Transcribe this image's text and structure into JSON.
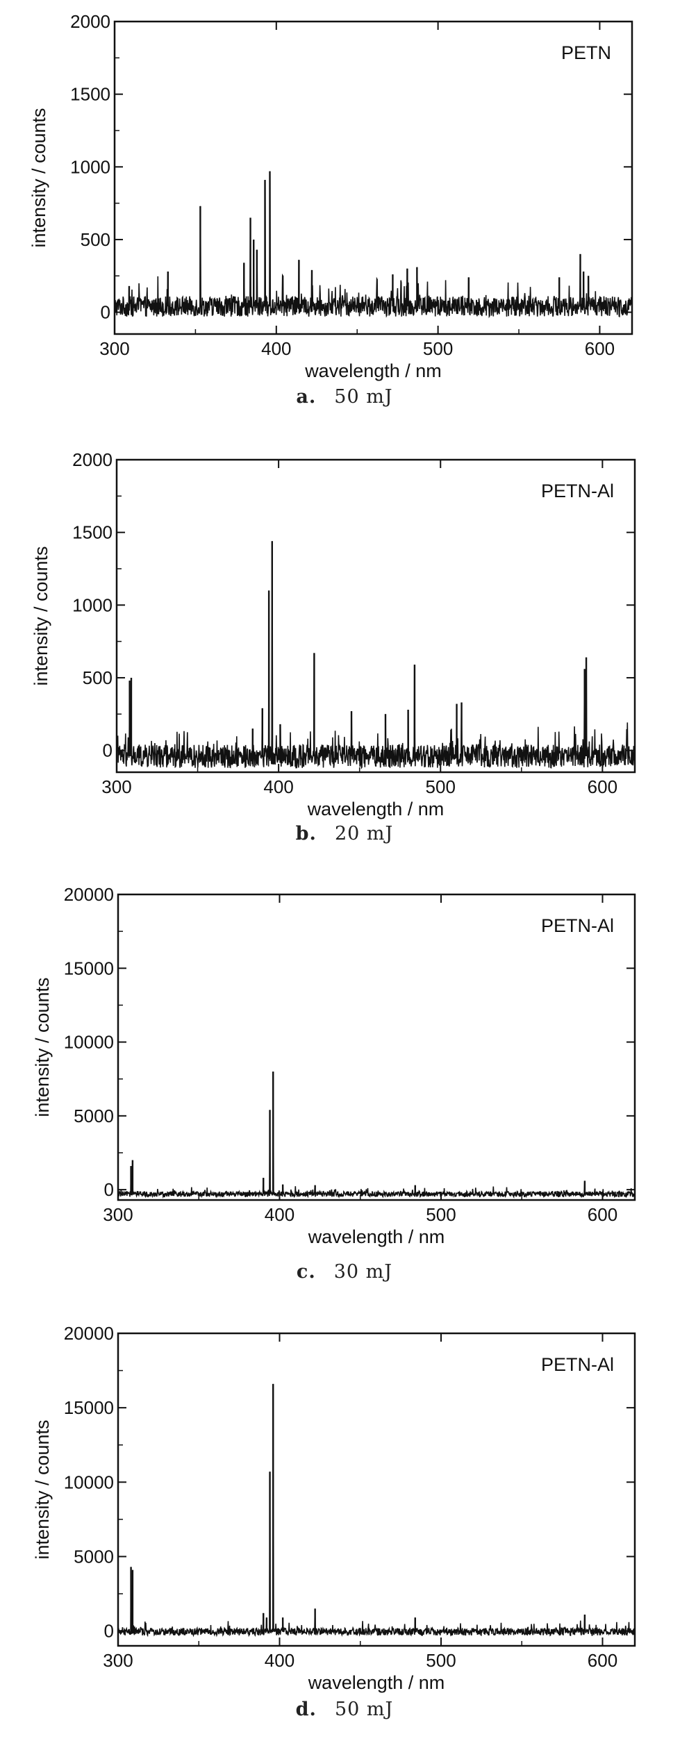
{
  "chart_data": [
    {
      "type": "line",
      "caption_label": "a.",
      "caption_energy": "50 mJ",
      "annotation": "PETN",
      "xlabel": "wavelength / nm",
      "ylabel": "intensity / counts",
      "xlim": [
        300,
        620
      ],
      "ylim": [
        -150,
        2000
      ],
      "xticks": [
        300,
        400,
        500,
        600
      ],
      "yticks": [
        0,
        500,
        1000,
        1500,
        2000
      ],
      "baseline": 40,
      "noise": 70,
      "peaks": [
        {
          "x": 309,
          "y": 180
        },
        {
          "x": 333,
          "y": 280
        },
        {
          "x": 353,
          "y": 730
        },
        {
          "x": 380,
          "y": 340
        },
        {
          "x": 384,
          "y": 650
        },
        {
          "x": 386,
          "y": 500
        },
        {
          "x": 388,
          "y": 430
        },
        {
          "x": 393,
          "y": 910
        },
        {
          "x": 396,
          "y": 970
        },
        {
          "x": 404,
          "y": 250
        },
        {
          "x": 414,
          "y": 360
        },
        {
          "x": 422,
          "y": 290
        },
        {
          "x": 472,
          "y": 260
        },
        {
          "x": 481,
          "y": 300
        },
        {
          "x": 487,
          "y": 310
        },
        {
          "x": 519,
          "y": 240
        },
        {
          "x": 575,
          "y": 240
        },
        {
          "x": 588,
          "y": 400
        },
        {
          "x": 590,
          "y": 280
        },
        {
          "x": 593,
          "y": 250
        }
      ]
    },
    {
      "type": "line",
      "caption_label": "b.",
      "caption_energy": "20 mJ",
      "annotation": "PETN-Al",
      "xlabel": "wavelength / nm",
      "ylabel": "intensity / counts",
      "xlim": [
        300,
        620
      ],
      "ylim": [
        -150,
        2000
      ],
      "xticks": [
        300,
        400,
        500,
        600
      ],
      "yticks": [
        0,
        500,
        1000,
        1500,
        2000
      ],
      "baseline": -40,
      "noise": 80,
      "peaks": [
        {
          "x": 308,
          "y": 480
        },
        {
          "x": 309,
          "y": 500
        },
        {
          "x": 384,
          "y": 150
        },
        {
          "x": 390,
          "y": 290
        },
        {
          "x": 394,
          "y": 1100
        },
        {
          "x": 396,
          "y": 1440
        },
        {
          "x": 401,
          "y": 180
        },
        {
          "x": 422,
          "y": 670
        },
        {
          "x": 445,
          "y": 270
        },
        {
          "x": 466,
          "y": 250
        },
        {
          "x": 480,
          "y": 280
        },
        {
          "x": 484,
          "y": 590
        },
        {
          "x": 510,
          "y": 320
        },
        {
          "x": 513,
          "y": 330
        },
        {
          "x": 589,
          "y": 560
        },
        {
          "x": 590,
          "y": 640
        }
      ]
    },
    {
      "type": "line",
      "caption_label": "c.",
      "caption_energy": "30 mJ",
      "annotation": "PETN-Al",
      "xlabel": "wavelength / nm",
      "ylabel": "intensity / counts",
      "xlim": [
        300,
        620
      ],
      "ylim": [
        -700,
        20000
      ],
      "xticks": [
        300,
        400,
        500,
        600
      ],
      "yticks": [
        0,
        5000,
        10000,
        15000,
        20000
      ],
      "baseline": -300,
      "noise": 180,
      "peaks": [
        {
          "x": 308,
          "y": 1600
        },
        {
          "x": 309,
          "y": 2000
        },
        {
          "x": 390,
          "y": 800
        },
        {
          "x": 394,
          "y": 5400
        },
        {
          "x": 396,
          "y": 8000
        },
        {
          "x": 402,
          "y": 350
        },
        {
          "x": 422,
          "y": 300
        },
        {
          "x": 484,
          "y": 300
        },
        {
          "x": 589,
          "y": 600
        }
      ]
    },
    {
      "type": "line",
      "caption_label": "d.",
      "caption_energy": "50 mJ",
      "annotation": "PETN-Al",
      "xlabel": "wavelength / nm",
      "ylabel": "intensity / counts",
      "xlim": [
        300,
        620
      ],
      "ylim": [
        -1000,
        20000
      ],
      "xticks": [
        300,
        400,
        500,
        600
      ],
      "yticks": [
        0,
        5000,
        10000,
        15000,
        20000
      ],
      "baseline": -50,
      "noise": 250,
      "peaks": [
        {
          "x": 308,
          "y": 4300
        },
        {
          "x": 309,
          "y": 4100
        },
        {
          "x": 390,
          "y": 1200
        },
        {
          "x": 392,
          "y": 900
        },
        {
          "x": 394,
          "y": 10700
        },
        {
          "x": 396,
          "y": 16600
        },
        {
          "x": 402,
          "y": 900
        },
        {
          "x": 422,
          "y": 1500
        },
        {
          "x": 484,
          "y": 900
        },
        {
          "x": 589,
          "y": 1100
        }
      ]
    }
  ]
}
